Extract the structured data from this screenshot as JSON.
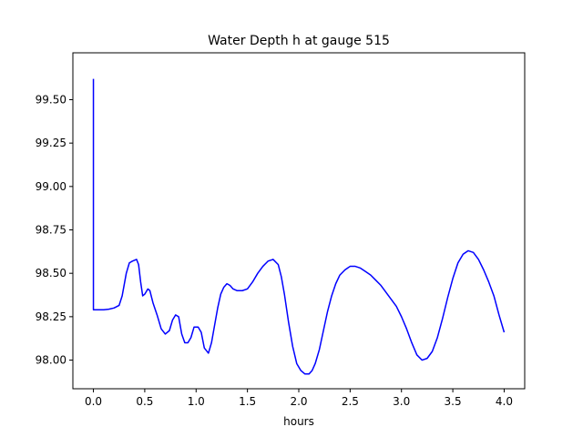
{
  "chart_data": {
    "type": "line",
    "title": "Water Depth h at gauge 515",
    "xlabel": "hours",
    "ylabel": "",
    "xlim": [
      -0.2,
      4.2
    ],
    "ylim": [
      97.835,
      99.77
    ],
    "x_ticks": [
      0.0,
      0.5,
      1.0,
      1.5,
      2.0,
      2.5,
      3.0,
      3.5,
      4.0
    ],
    "x_tick_labels": [
      "0.0",
      "0.5",
      "1.0",
      "1.5",
      "2.0",
      "2.5",
      "3.0",
      "3.5",
      "4.0"
    ],
    "y_ticks": [
      98.0,
      98.25,
      98.5,
      98.75,
      99.0,
      99.25,
      99.5
    ],
    "y_tick_labels": [
      "98.00",
      "98.25",
      "98.50",
      "98.75",
      "99.00",
      "99.25",
      "99.50"
    ],
    "grid": false,
    "colors": {
      "line": "#0000ff",
      "axes": "#000000",
      "background": "#ffffff"
    },
    "series": [
      {
        "x": [
          0.0,
          0.0,
          0.0,
          0.05,
          0.1,
          0.15,
          0.2,
          0.25,
          0.28,
          0.32,
          0.35,
          0.38,
          0.42,
          0.44,
          0.46,
          0.48,
          0.5,
          0.53,
          0.55,
          0.58,
          0.62,
          0.66,
          0.7,
          0.74,
          0.77,
          0.8,
          0.83,
          0.86,
          0.89,
          0.92,
          0.95,
          0.98,
          1.02,
          1.05,
          1.08,
          1.12,
          1.15,
          1.18,
          1.21,
          1.24,
          1.27,
          1.3,
          1.33,
          1.36,
          1.4,
          1.45,
          1.5,
          1.55,
          1.6,
          1.65,
          1.7,
          1.75,
          1.8,
          1.83,
          1.86,
          1.9,
          1.94,
          1.98,
          2.02,
          2.06,
          2.1,
          2.13,
          2.16,
          2.2,
          2.24,
          2.28,
          2.32,
          2.36,
          2.4,
          2.45,
          2.5,
          2.55,
          2.6,
          2.65,
          2.7,
          2.75,
          2.8,
          2.85,
          2.9,
          2.95,
          3.0,
          3.05,
          3.1,
          3.15,
          3.2,
          3.25,
          3.3,
          3.35,
          3.4,
          3.45,
          3.5,
          3.55,
          3.6,
          3.65,
          3.7,
          3.75,
          3.8,
          3.85,
          3.9,
          3.95,
          4.0
        ],
        "y": [
          99.62,
          99.48,
          98.29,
          98.29,
          98.29,
          98.293,
          98.3,
          98.315,
          98.37,
          98.5,
          98.56,
          98.57,
          98.58,
          98.55,
          98.45,
          98.37,
          98.38,
          98.41,
          98.4,
          98.33,
          98.26,
          98.18,
          98.15,
          98.17,
          98.23,
          98.26,
          98.25,
          98.15,
          98.1,
          98.1,
          98.13,
          98.19,
          98.19,
          98.16,
          98.07,
          98.04,
          98.1,
          98.2,
          98.3,
          98.38,
          98.42,
          98.44,
          98.43,
          98.41,
          98.4,
          98.4,
          98.41,
          98.45,
          98.5,
          98.54,
          98.57,
          98.58,
          98.55,
          98.48,
          98.38,
          98.22,
          98.08,
          97.98,
          97.94,
          97.92,
          97.92,
          97.94,
          97.98,
          98.06,
          98.17,
          98.28,
          98.37,
          98.44,
          98.49,
          98.52,
          98.54,
          98.54,
          98.53,
          98.51,
          98.49,
          98.46,
          98.43,
          98.39,
          98.35,
          98.31,
          98.25,
          98.18,
          98.1,
          98.03,
          98.0,
          98.01,
          98.05,
          98.13,
          98.24,
          98.36,
          98.47,
          98.56,
          98.61,
          98.63,
          98.62,
          98.58,
          98.52,
          98.45,
          98.37,
          98.26,
          98.16
        ]
      }
    ]
  }
}
